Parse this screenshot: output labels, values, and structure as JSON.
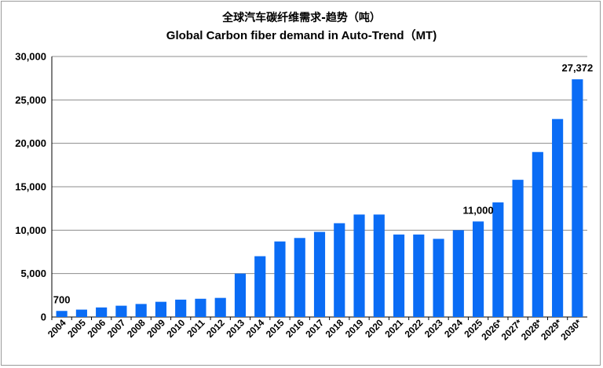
{
  "chart_data": {
    "type": "bar",
    "title_zh": "全球汽车碳纤维需求-趋势（吨）",
    "title": "Global Carbon fiber demand in Auto-Trend（MT)",
    "categories": [
      "2004",
      "2005",
      "2006",
      "2007",
      "2008",
      "2009",
      "2010",
      "2011",
      "2012",
      "2013",
      "2014",
      "2015",
      "2016",
      "2017",
      "2018",
      "2019",
      "2020",
      "2021",
      "2022",
      "2023",
      "2024",
      "2025",
      "2026*",
      "2027*",
      "2028*",
      "2029*",
      "2030*"
    ],
    "values": [
      700,
      850,
      1100,
      1300,
      1500,
      1750,
      2000,
      2100,
      2200,
      5000,
      7000,
      8700,
      9100,
      9800,
      10800,
      11800,
      11800,
      9500,
      9500,
      9000,
      10000,
      11000,
      13200,
      15800,
      19000,
      22800,
      27372
    ],
    "ylim": [
      0,
      30000
    ],
    "yticks": [
      0,
      5000,
      10000,
      15000,
      20000,
      25000,
      30000
    ],
    "ytick_labels": [
      "0",
      "5,000",
      "10,000",
      "15,000",
      "20,000",
      "25,000",
      "30,000"
    ],
    "data_labels": [
      {
        "index": 0,
        "text": "700"
      },
      {
        "index": 21,
        "text": "11,000"
      },
      {
        "index": 26,
        "text": "27,372"
      }
    ],
    "bar_color": "#0a6cf5",
    "grid": true,
    "legend": "none"
  }
}
